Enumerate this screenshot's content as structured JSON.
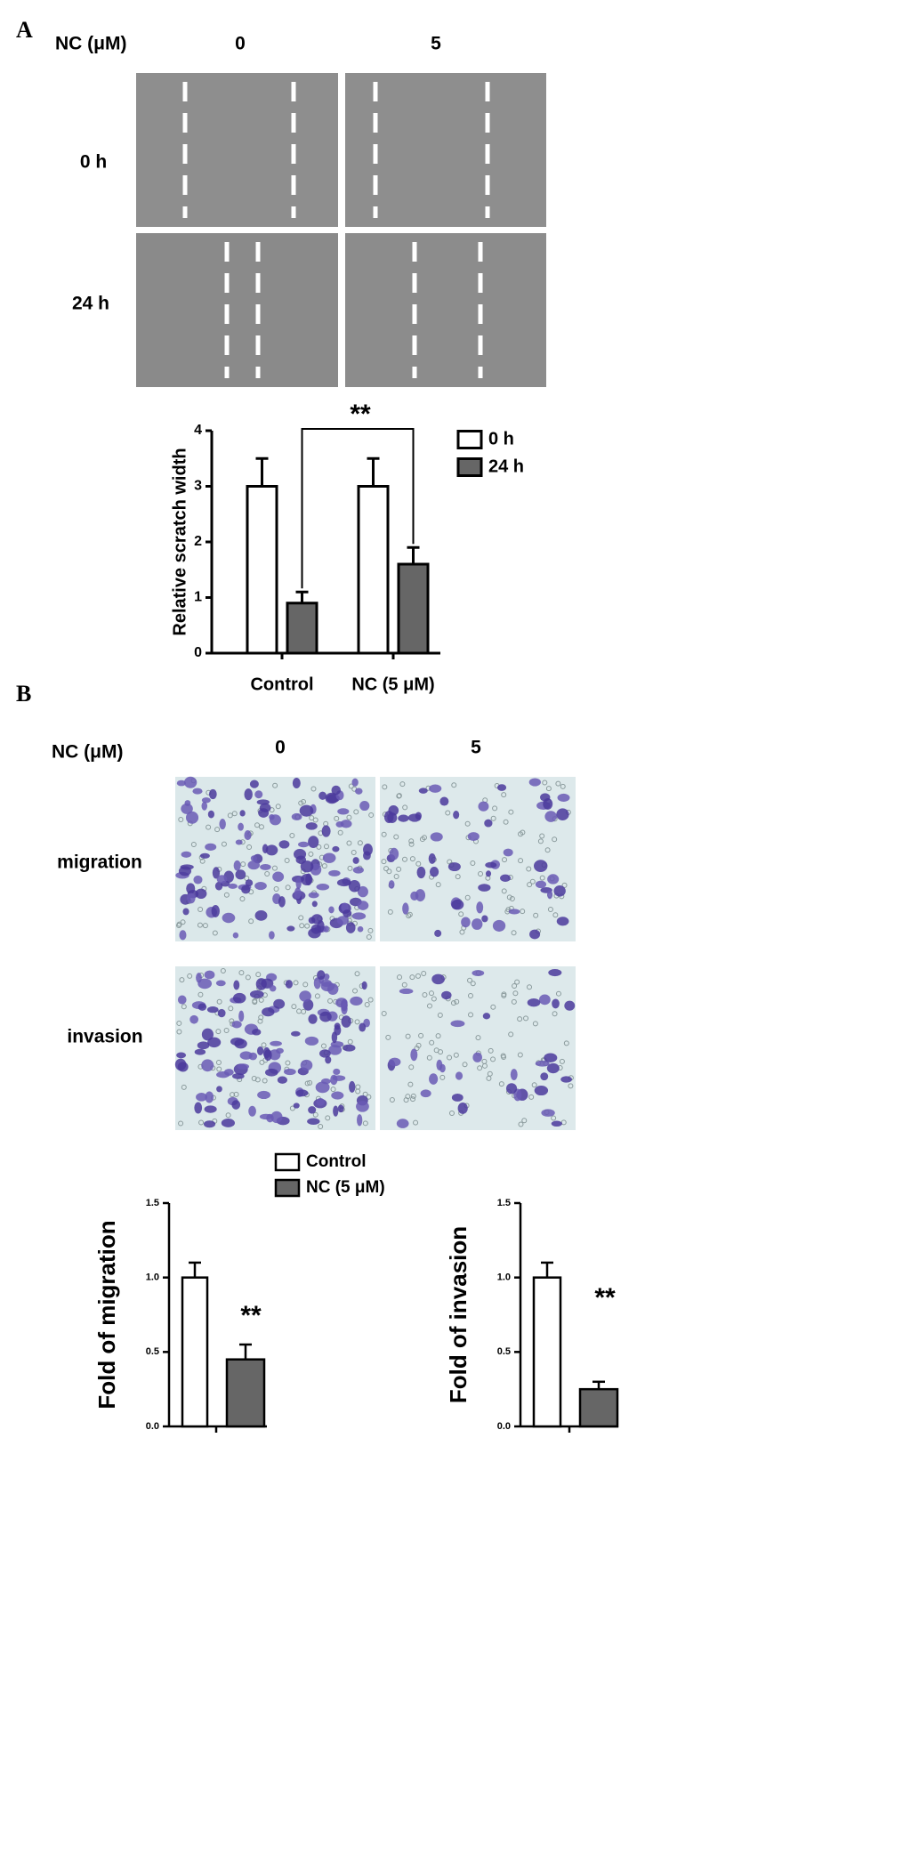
{
  "panels": {
    "a": {
      "label": "A",
      "header": "NC (μM)",
      "columns": [
        "0",
        "5"
      ],
      "rows": [
        "0 h",
        "24 h"
      ]
    },
    "b": {
      "label": "B",
      "header": "NC (μM)",
      "columns": [
        "0",
        "5"
      ],
      "rows": [
        "migration",
        "invasion"
      ]
    }
  },
  "chart_data": [
    {
      "type": "bar",
      "y_label": "Relative scratch width",
      "categories": [
        "Control",
        "NC (5 μM)"
      ],
      "series": [
        {
          "name": "0 h",
          "color": "#ffffff",
          "values": [
            3,
            3
          ],
          "errors": [
            0.5,
            0.5
          ]
        },
        {
          "name": "24 h",
          "color": "#666666",
          "values": [
            0.9,
            1.6
          ],
          "errors": [
            0.2,
            0.3
          ]
        }
      ],
      "ylim": [
        0,
        4
      ],
      "yticks": [
        0,
        1,
        2,
        3,
        4
      ],
      "annotations": [
        {
          "text": "**"
        }
      ]
    },
    {
      "type": "bar",
      "y_label": "Fold of migration",
      "series": [
        {
          "name": "Control",
          "color": "#ffffff",
          "values": [
            1.0
          ],
          "errors": [
            0.1
          ]
        },
        {
          "name": "NC (5 μM)",
          "color": "#666666",
          "values": [
            0.45
          ],
          "errors": [
            0.1
          ]
        }
      ],
      "ylim": [
        0,
        1.5
      ],
      "yticks": [
        {
          "value": 0,
          "label": "0.0"
        },
        0.5,
        {
          "value": 1,
          "label": "1.0"
        },
        1.5
      ],
      "annotations": [
        {
          "text": "**"
        }
      ]
    },
    {
      "type": "bar",
      "y_label": "Fold of invasion",
      "series": [
        {
          "color": "#ffffff",
          "values": [
            1.0
          ],
          "errors": [
            0.1
          ]
        },
        {
          "color": "#666666",
          "values": [
            0.25
          ],
          "errors": [
            0.05
          ]
        }
      ],
      "ylim": [
        0,
        1.5
      ],
      "yticks": [
        {
          "value": 0,
          "label": "0.0"
        },
        0.5,
        {
          "value": 1,
          "label": "1.0"
        },
        1.5
      ],
      "annotations": [
        {
          "text": "**"
        }
      ]
    }
  ]
}
